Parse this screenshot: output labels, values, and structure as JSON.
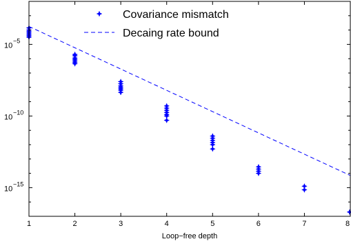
{
  "chart_data": {
    "type": "scatter",
    "xlabel": "Loop−free depth",
    "ylabel": "",
    "title": "",
    "xlim": [
      1,
      8
    ],
    "ylim_log10": [
      -17,
      -2
    ],
    "yscale": "log",
    "grid": false,
    "legend_position": "top-center",
    "x_ticks": [
      {
        "value": 1,
        "label": "1"
      },
      {
        "value": 2,
        "label": "2"
      },
      {
        "value": 3,
        "label": "3"
      },
      {
        "value": 4,
        "label": "4"
      },
      {
        "value": 5,
        "label": "5"
      },
      {
        "value": 6,
        "label": "6"
      },
      {
        "value": 7,
        "label": "7"
      },
      {
        "value": 8,
        "label": "8"
      }
    ],
    "y_ticks": [
      {
        "value": -5,
        "label": "10",
        "exp": "−5"
      },
      {
        "value": -10,
        "label": "10",
        "exp": "−10"
      },
      {
        "value": -15,
        "label": "10",
        "exp": "−15"
      }
    ],
    "series": [
      {
        "name": "Covariance mismatch",
        "kind": "markers",
        "color": "#0000ff",
        "points": [
          {
            "x": 1,
            "log10y": [
              -3.85,
              -4.0,
              -4.1,
              -4.2,
              -4.3,
              -4.4,
              -4.5
            ]
          },
          {
            "x": 2,
            "log10y": [
              -5.7,
              -5.8,
              -5.95,
              -6.05,
              -6.15,
              -6.25,
              -6.35
            ]
          },
          {
            "x": 3,
            "log10y": [
              -7.6,
              -7.75,
              -7.9,
              -8.0,
              -8.1,
              -8.2,
              -8.35
            ]
          },
          {
            "x": 4,
            "log10y": [
              -9.3,
              -9.45,
              -9.6,
              -9.75,
              -9.9,
              -10.0,
              -10.3
            ]
          },
          {
            "x": 5,
            "log10y": [
              -11.4,
              -11.55,
              -11.7,
              -11.85,
              -12.0,
              -12.3
            ]
          },
          {
            "x": 6,
            "log10y": [
              -13.55,
              -13.7,
              -13.85,
              -14.0
            ]
          },
          {
            "x": 7,
            "log10y": [
              -14.9,
              -15.15
            ]
          },
          {
            "x": 8,
            "log10y": [
              -16.7
            ]
          }
        ]
      },
      {
        "name": "Decaing rate bound",
        "kind": "dashed-line",
        "color": "#0000ff",
        "x": [
          1,
          8
        ],
        "log10y": [
          -3.75,
          -14.15
        ]
      }
    ]
  }
}
